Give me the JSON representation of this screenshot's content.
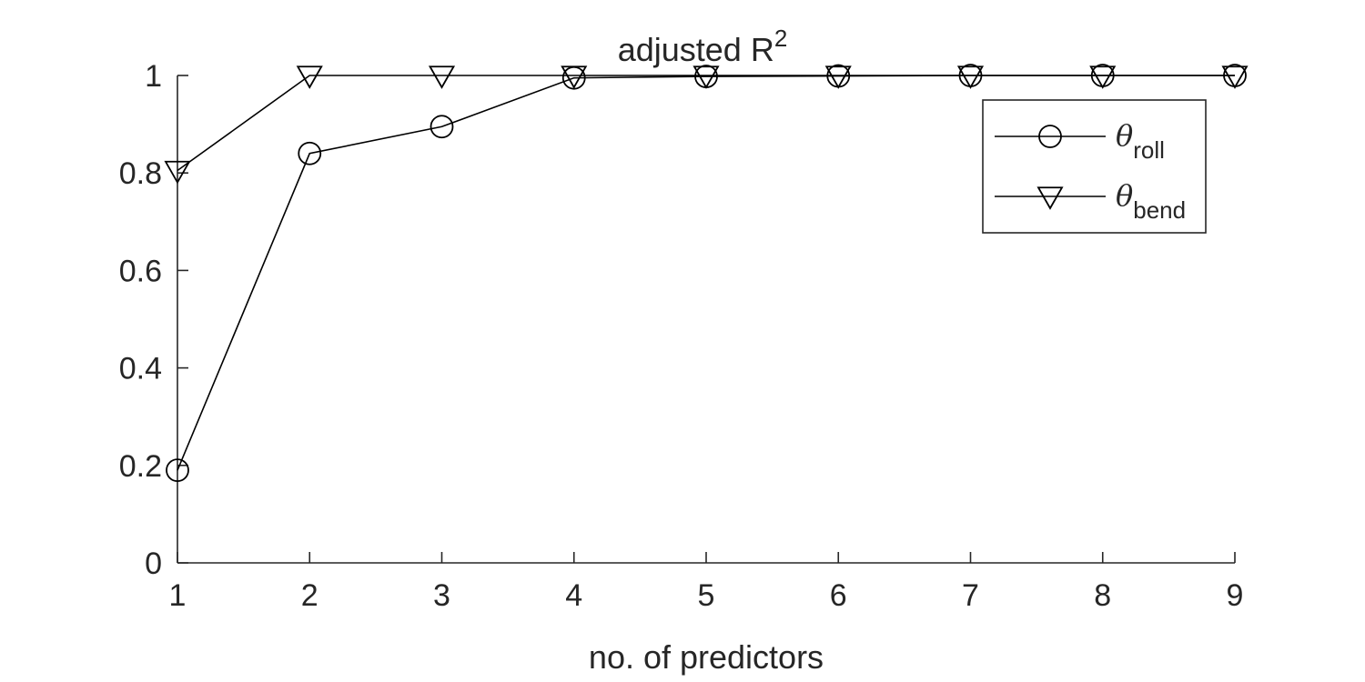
{
  "chart_data": {
    "type": "line",
    "title": "adjusted R",
    "title_superscript": "2",
    "xlabel": "no. of predictors",
    "ylabel": "",
    "x": [
      1,
      2,
      3,
      4,
      5,
      6,
      7,
      8,
      9
    ],
    "xlim": [
      1,
      9
    ],
    "ylim": [
      0,
      1
    ],
    "xticks": [
      "1",
      "2",
      "3",
      "4",
      "5",
      "6",
      "7",
      "8",
      "9"
    ],
    "yticks": [
      "0",
      "0.2",
      "0.4",
      "0.6",
      "0.8",
      "1"
    ],
    "grid": false,
    "legend_position": "top-right",
    "series": [
      {
        "name": "roll",
        "legend_symbol": "θ",
        "legend_subscript": "roll",
        "marker": "circle",
        "color": "#000000",
        "values": [
          0.19,
          0.84,
          0.895,
          0.995,
          0.998,
          0.999,
          1.0,
          1.0,
          1.0
        ]
      },
      {
        "name": "bend",
        "legend_symbol": "θ",
        "legend_subscript": "bend",
        "marker": "triangle-down",
        "color": "#000000",
        "values": [
          0.805,
          1.0,
          1.0,
          1.0,
          1.0,
          1.0,
          1.0,
          1.0,
          1.0
        ]
      }
    ]
  }
}
